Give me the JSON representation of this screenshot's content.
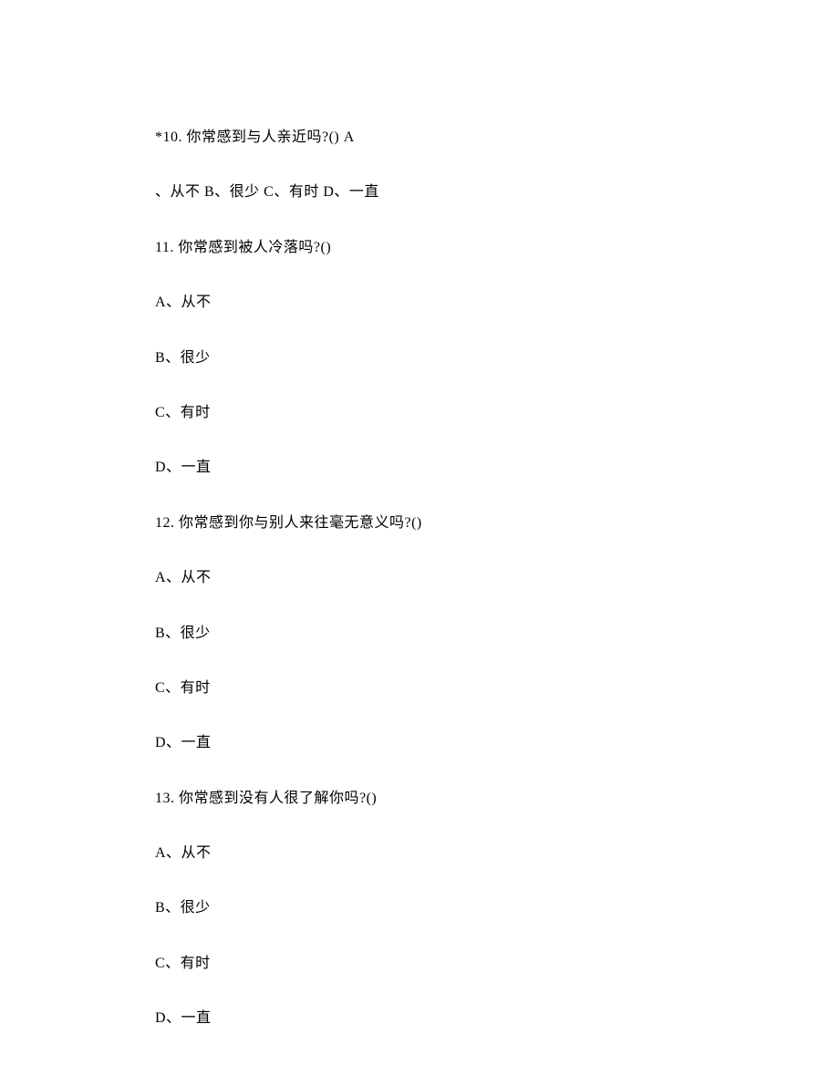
{
  "q10": {
    "line1": "*10. 你常感到与人亲近吗?() A",
    "line2": "、从不 B、很少 C、有时 D、一直"
  },
  "q11": {
    "question": "11. 你常感到被人冷落吗?()",
    "optionA": "A、从不",
    "optionB": "B、很少",
    "optionC": "C、有时",
    "optionD": "D、一直"
  },
  "q12": {
    "question": "12. 你常感到你与别人来往毫无意义吗?()",
    "optionA": "A、从不",
    "optionB": "B、很少",
    "optionC": "C、有时",
    "optionD": "D、一直"
  },
  "q13": {
    "question": "13. 你常感到没有人很了解你吗?()",
    "optionA": "A、从不",
    "optionB": "B、很少",
    "optionC": "C、有时",
    "optionD": "D、一直"
  }
}
